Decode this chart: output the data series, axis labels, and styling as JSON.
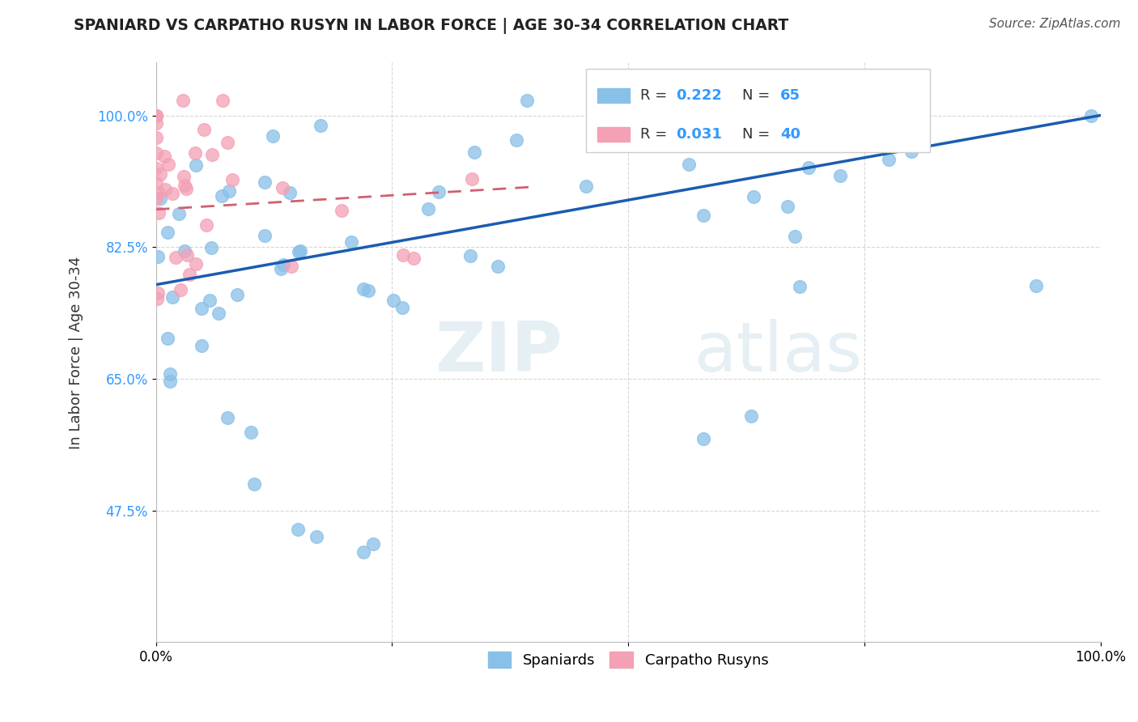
{
  "title": "SPANIARD VS CARPATHO RUSYN IN LABOR FORCE | AGE 30-34 CORRELATION CHART",
  "source": "Source: ZipAtlas.com",
  "ylabel": "In Labor Force | Age 30-34",
  "xlim": [
    0,
    1
  ],
  "ylim": [
    0.3,
    1.07
  ],
  "yticks": [
    0.475,
    0.65,
    0.825,
    1.0
  ],
  "ytick_labels": [
    "47.5%",
    "65.0%",
    "82.5%",
    "100.0%"
  ],
  "xticks": [
    0.0,
    0.25,
    0.5,
    0.75,
    1.0
  ],
  "xtick_labels": [
    "0.0%",
    "",
    "",
    "",
    "100.0%"
  ],
  "watermark_zip": "ZIP",
  "watermark_atlas": "atlas",
  "legend_r1_label": "R = ",
  "legend_r1_val": "0.222",
  "legend_n1_label": "  N = ",
  "legend_n1_val": "65",
  "legend_r2_label": "R = ",
  "legend_r2_val": "0.031",
  "legend_n2_label": "  N = ",
  "legend_n2_val": "40",
  "color_spaniard": "#88C0E8",
  "color_rusyn": "#F4A0B5",
  "color_line_spaniard": "#1A5CB0",
  "color_line_rusyn": "#D06070",
  "color_trendval": "#3399FF",
  "background_color": "#FFFFFF",
  "grid_color": "#CCCCCC",
  "sp_line_x0": 0.0,
  "sp_line_x1": 1.0,
  "sp_line_y0": 0.775,
  "sp_line_y1": 1.0,
  "ru_line_x0": 0.0,
  "ru_line_x1": 0.4,
  "ru_line_y0": 0.875,
  "ru_line_y1": 0.905
}
